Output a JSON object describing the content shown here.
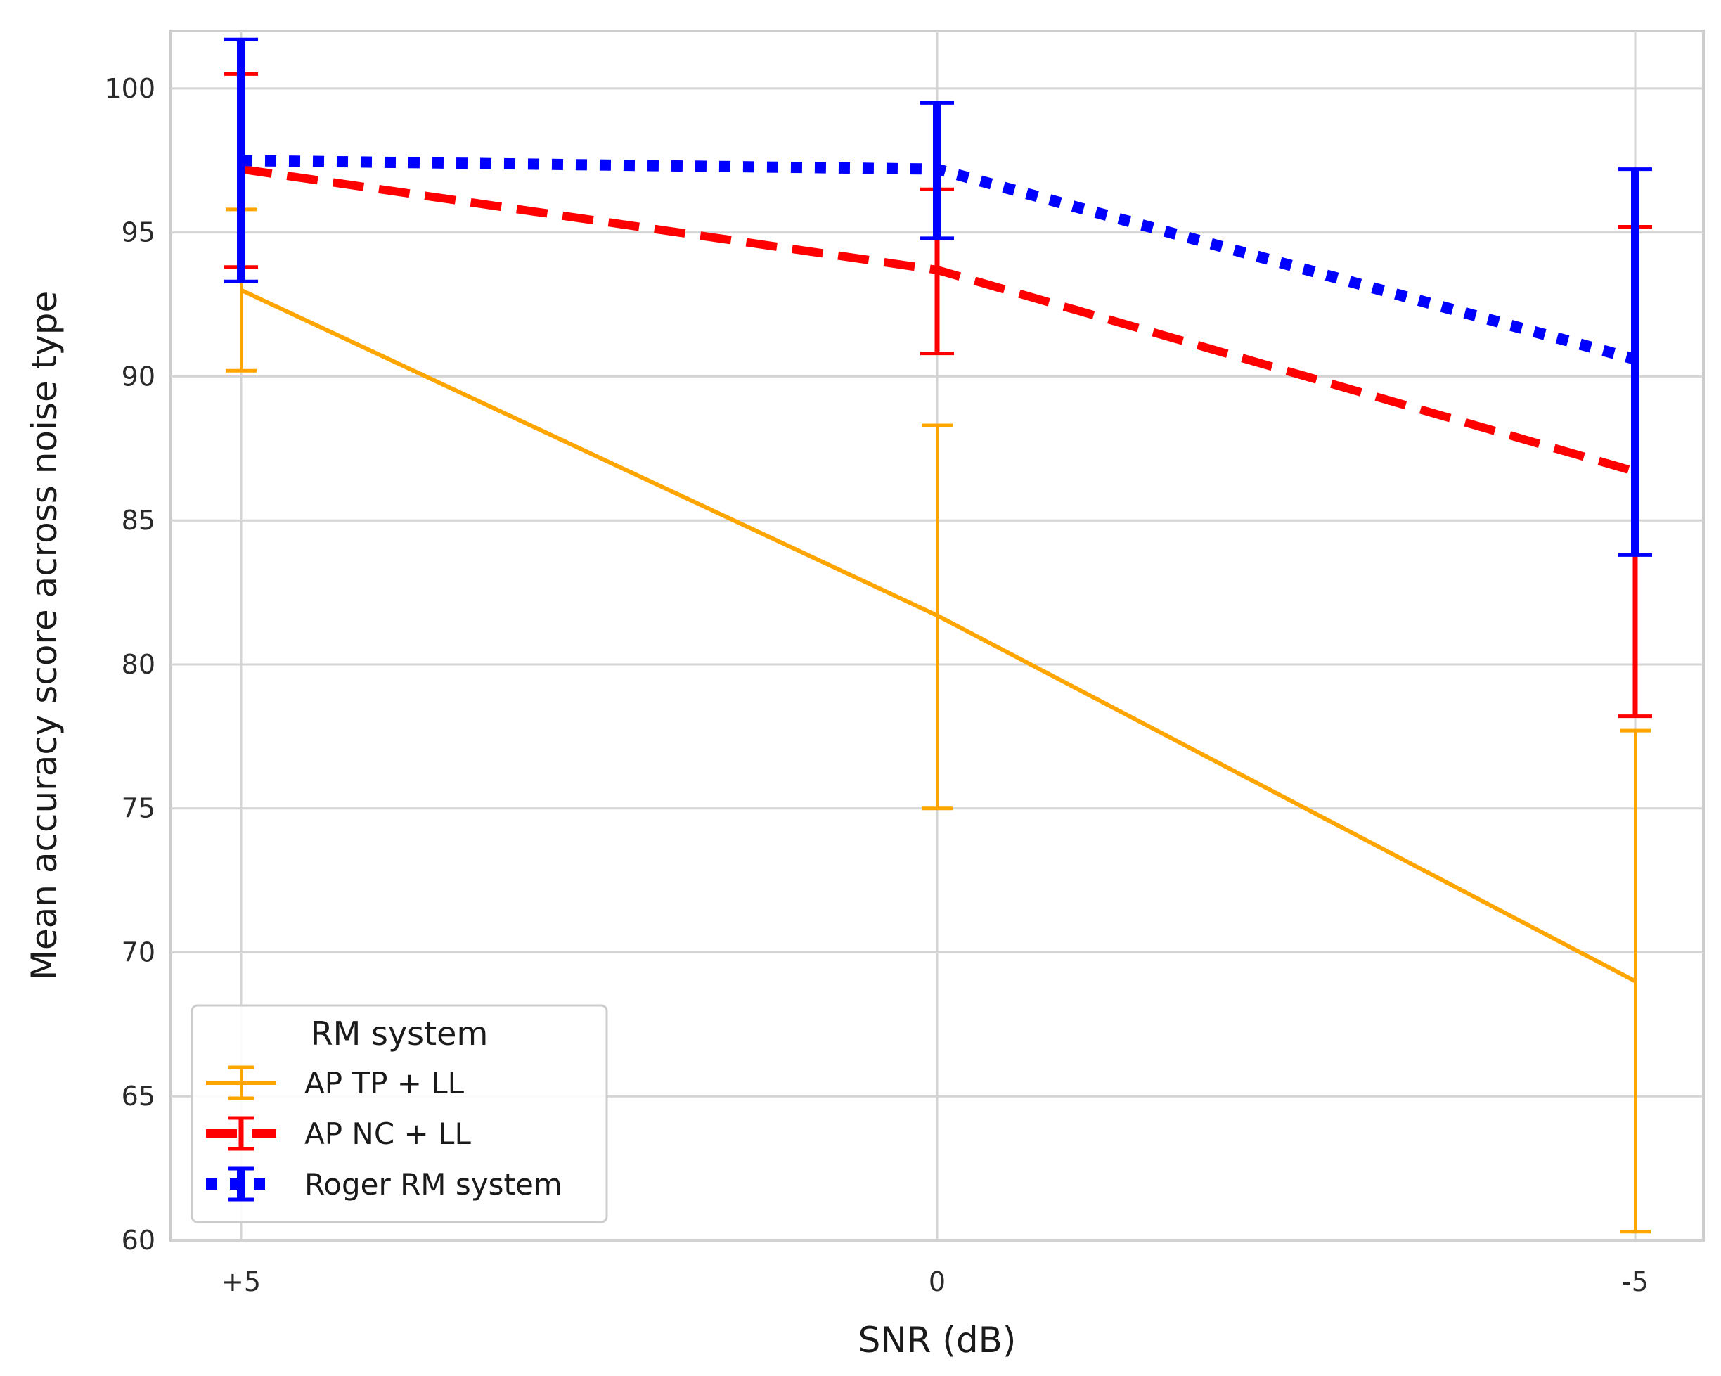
{
  "chart_data": {
    "type": "line",
    "title": "",
    "xlabel": "SNR (dB)",
    "ylabel": "Mean accuracy score across noise type",
    "categories": [
      "+5",
      "0",
      "-5"
    ],
    "ylim": [
      60,
      102
    ],
    "yticks": [
      60,
      65,
      70,
      75,
      80,
      85,
      90,
      95,
      100
    ],
    "grid": true,
    "legend": {
      "title": "RM system",
      "position": "lower-left"
    },
    "series": [
      {
        "name": "AP TP + LL",
        "color": "#FFA500",
        "style": "solid",
        "values": [
          93.0,
          81.7,
          69.0
        ],
        "error": [
          [
            90.2,
            95.8
          ],
          [
            75.0,
            88.3
          ],
          [
            60.3,
            77.7
          ]
        ]
      },
      {
        "name": "AP NC + LL",
        "color": "#FF0000",
        "style": "dashed",
        "values": [
          97.2,
          93.7,
          86.7
        ],
        "error": [
          [
            93.8,
            100.5
          ],
          [
            90.8,
            96.5
          ],
          [
            78.2,
            95.2
          ]
        ]
      },
      {
        "name": "Roger RM system",
        "color": "#0000FF",
        "style": "dotted",
        "values": [
          97.5,
          97.2,
          90.6
        ],
        "error": [
          [
            93.3,
            101.7
          ],
          [
            94.8,
            99.5
          ],
          [
            83.8,
            97.2
          ]
        ]
      }
    ]
  }
}
